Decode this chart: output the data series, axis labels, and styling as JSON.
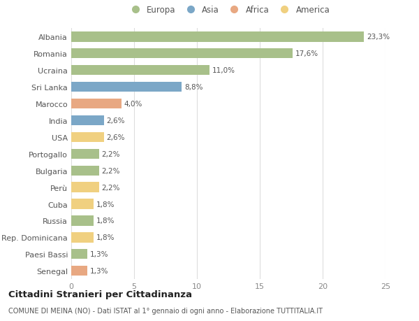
{
  "countries": [
    "Albania",
    "Romania",
    "Ucraina",
    "Sri Lanka",
    "Marocco",
    "India",
    "USA",
    "Portogallo",
    "Bulgaria",
    "Perù",
    "Cuba",
    "Russia",
    "Rep. Dominicana",
    "Paesi Bassi",
    "Senegal"
  ],
  "values": [
    23.3,
    17.6,
    11.0,
    8.8,
    4.0,
    2.6,
    2.6,
    2.2,
    2.2,
    2.2,
    1.8,
    1.8,
    1.8,
    1.3,
    1.3
  ],
  "labels": [
    "23,3%",
    "17,6%",
    "11,0%",
    "8,8%",
    "4,0%",
    "2,6%",
    "2,6%",
    "2,2%",
    "2,2%",
    "2,2%",
    "1,8%",
    "1,8%",
    "1,8%",
    "1,3%",
    "1,3%"
  ],
  "continents": [
    "Europa",
    "Europa",
    "Europa",
    "Asia",
    "Africa",
    "Asia",
    "America",
    "Europa",
    "Europa",
    "America",
    "America",
    "Europa",
    "America",
    "Europa",
    "Africa"
  ],
  "colors": {
    "Europa": "#a8c08a",
    "Asia": "#7ba7c7",
    "Africa": "#e8a882",
    "America": "#f0d080"
  },
  "legend_order": [
    "Europa",
    "Asia",
    "Africa",
    "America"
  ],
  "title": "Cittadini Stranieri per Cittadinanza",
  "subtitle": "COMUNE DI MEINA (NO) - Dati ISTAT al 1° gennaio di ogni anno - Elaborazione TUTTITALIA.IT",
  "xlim": [
    0,
    25
  ],
  "xticks": [
    0,
    5,
    10,
    15,
    20,
    25
  ],
  "background_color": "#ffffff",
  "grid_color": "#dddddd",
  "bar_height": 0.6
}
